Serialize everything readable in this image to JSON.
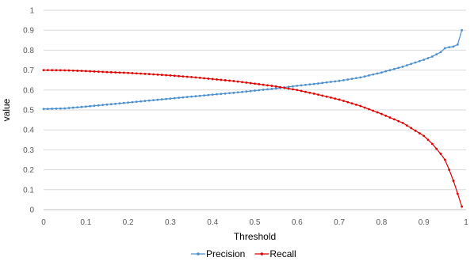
{
  "chart_data": {
    "type": "line",
    "title": "",
    "xlabel": "Threshold",
    "ylabel": "value",
    "xlim": [
      0,
      1
    ],
    "ylim": [
      0,
      1
    ],
    "x_ticks": [
      "0",
      "0.1",
      "0.2",
      "0.3",
      "0.4",
      "0.5",
      "0.6",
      "0.7",
      "0.8",
      "0.9",
      "1"
    ],
    "y_ticks": [
      "0",
      "0.1",
      "0.2",
      "0.3",
      "0.4",
      "0.5",
      "0.6",
      "0.7",
      "0.8",
      "0.9",
      "1"
    ],
    "grid": "horizontal",
    "legend_position": "bottom",
    "x": [
      0,
      0.05,
      0.1,
      0.15,
      0.2,
      0.25,
      0.3,
      0.35,
      0.4,
      0.45,
      0.5,
      0.55,
      0.6,
      0.65,
      0.7,
      0.75,
      0.8,
      0.85,
      0.9,
      0.92,
      0.94,
      0.95,
      0.96,
      0.97,
      0.98,
      0.99
    ],
    "series": [
      {
        "name": "Precision",
        "color": "#4a8fd0",
        "values": [
          0.505,
          0.508,
          0.517,
          0.527,
          0.537,
          0.547,
          0.557,
          0.567,
          0.577,
          0.586,
          0.597,
          0.608,
          0.621,
          0.633,
          0.646,
          0.663,
          0.688,
          0.717,
          0.752,
          0.768,
          0.79,
          0.81,
          0.815,
          0.818,
          0.828,
          0.9
        ]
      },
      {
        "name": "Recall",
        "color": "#e00000",
        "values": [
          0.7,
          0.699,
          0.695,
          0.69,
          0.686,
          0.68,
          0.673,
          0.665,
          0.655,
          0.645,
          0.632,
          0.618,
          0.6,
          0.577,
          0.552,
          0.52,
          0.48,
          0.435,
          0.37,
          0.33,
          0.28,
          0.25,
          0.2,
          0.145,
          0.08,
          0.015
        ]
      }
    ]
  }
}
